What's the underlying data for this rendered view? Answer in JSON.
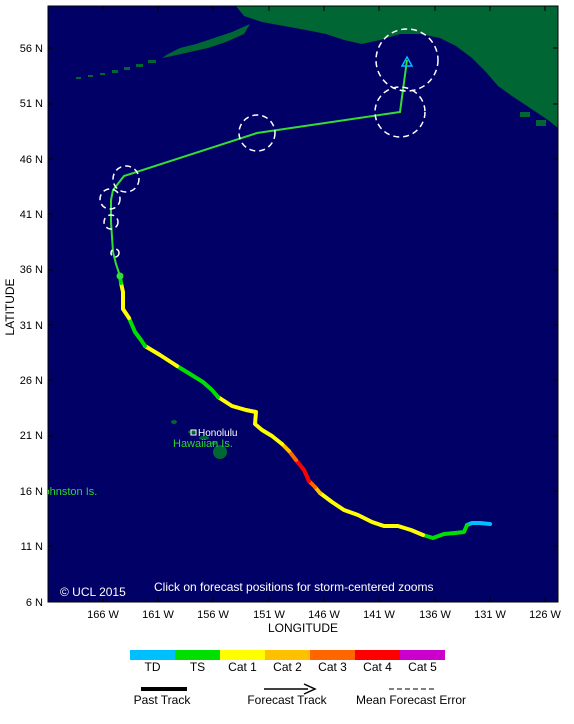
{
  "map": {
    "xlabel": "LONGITUDE",
    "ylabel": "LATITUDE",
    "copyright": "© UCL 2015",
    "hint": "Click on forecast positions for storm-centered zooms",
    "lon_ticks": [
      "166 W",
      "161 W",
      "156 W",
      "151 W",
      "146 W",
      "141 W",
      "136 W",
      "131 W",
      "126 W"
    ],
    "lat_ticks": [
      "56 N",
      "51 N",
      "46 N",
      "41 N",
      "36 N",
      "31 N",
      "26 N",
      "21 N",
      "16 N",
      "11 N",
      "6 N"
    ],
    "places": {
      "honolulu": "Honolulu",
      "hawaiian": "Hawaiian Is.",
      "johnston": "Johnston Is."
    }
  },
  "legend": {
    "categories": [
      {
        "label": "TD",
        "color": "#00bfff"
      },
      {
        "label": "TS",
        "color": "#00e000"
      },
      {
        "label": "Cat 1",
        "color": "#ffff00"
      },
      {
        "label": "Cat 2",
        "color": "#ffc000"
      },
      {
        "label": "Cat 3",
        "color": "#ff6600"
      },
      {
        "label": "Cat 4",
        "color": "#ff0000"
      },
      {
        "label": "Cat 5",
        "color": "#cc00cc"
      }
    ],
    "past_track": "Past Track",
    "forecast_track": "Forecast Track",
    "error": "Mean Forecast Error"
  },
  "colors": {
    "ocean": "#000066",
    "land": "#006633",
    "forecast_line": "#33dd33"
  }
}
